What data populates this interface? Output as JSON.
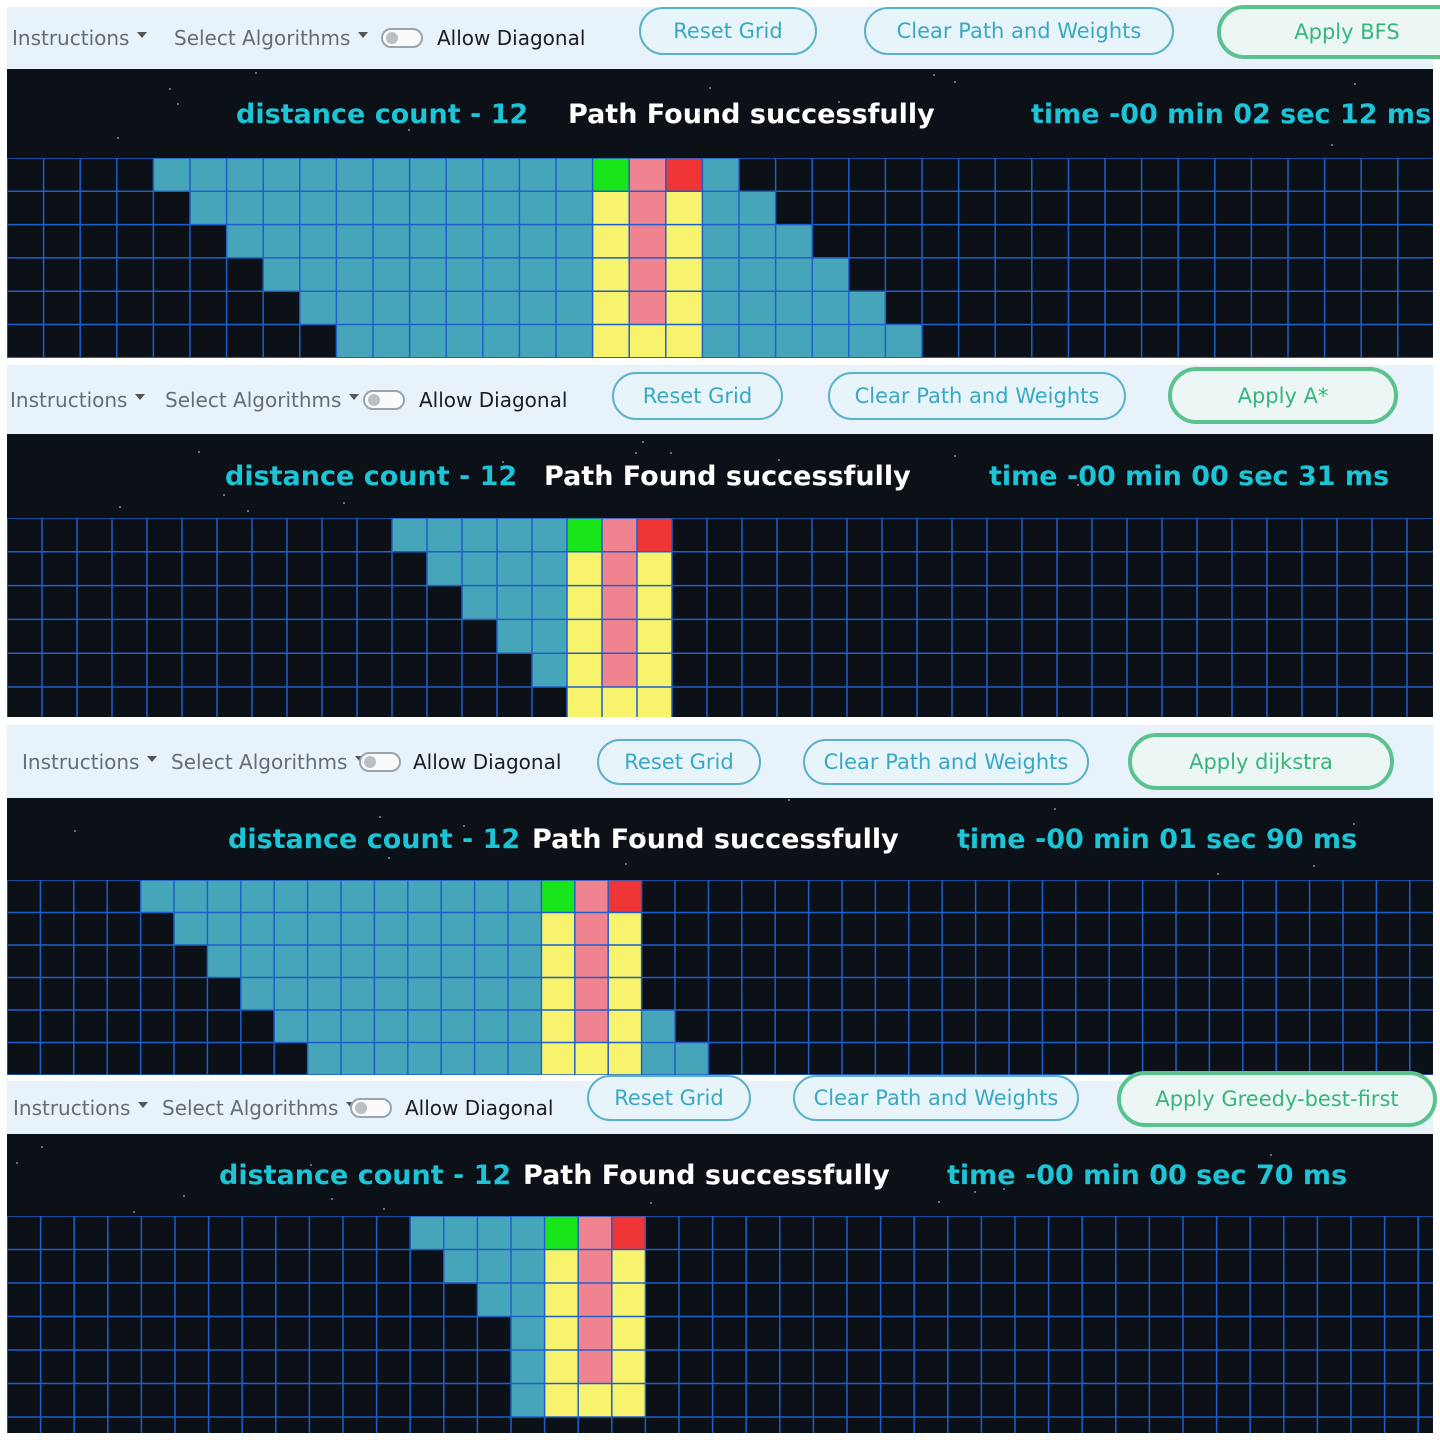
{
  "panels": [
    {
      "toolbar": {
        "instructions": "Instructions",
        "select_algorithms": "Select Algorithms",
        "allow_diagonal": "Allow Diagonal",
        "reset": "Reset Grid",
        "clear": "Clear Path and Weights",
        "apply": "Apply BFS"
      },
      "status": {
        "distance": "distance count - 12",
        "message": "Path Found successfully",
        "time": "time -00 min 02 sec 12 ms"
      },
      "grid": {
        "rows": 6,
        "cols": 39,
        "visited_start": [
          4,
          5,
          6,
          7,
          8,
          9
        ],
        "visited_end": [
          19,
          20,
          21,
          22,
          23,
          24
        ],
        "path_start_col": 16,
        "start_col": 16,
        "end_col": 18
      }
    },
    {
      "toolbar": {
        "instructions": "Instructions",
        "select_algorithms": "Select Algorithms",
        "allow_diagonal": "Allow Diagonal",
        "reset": "Reset Grid",
        "clear": "Clear Path and Weights",
        "apply": "Apply A*"
      },
      "status": {
        "distance": "distance count - 12",
        "message": "Path Found successfully",
        "time": "time -00 min 00 sec 31 ms"
      },
      "grid": {
        "rows": 6,
        "cols": 41,
        "visited_start": [
          11,
          12,
          13,
          14,
          15,
          16
        ],
        "visited_end": [
          15,
          15,
          15,
          15,
          15,
          15
        ],
        "path_start_col": 16,
        "start_col": 16,
        "end_col": 18
      }
    },
    {
      "toolbar": {
        "instructions": "Instructions",
        "select_algorithms": "Select Algorithms",
        "allow_diagonal": "Allow Diagonal",
        "reset": "Reset Grid",
        "clear": "Clear Path and Weights",
        "apply": "Apply dijkstra"
      },
      "status": {
        "distance": "distance count - 12",
        "message": "Path Found successfully",
        "time": "time -00 min 01 sec 90 ms"
      },
      "grid": {
        "rows": 6,
        "cols": 42,
        "visited_start": [
          4,
          5,
          6,
          7,
          8,
          9
        ],
        "visited_end": [
          15,
          16,
          17,
          18,
          19,
          20
        ],
        "path_start_col": 16,
        "start_col": 16,
        "end_col": 18
      }
    },
    {
      "toolbar": {
        "instructions": "Instructions",
        "select_algorithms": "Select Algorithms",
        "allow_diagonal": "Allow Diagonal",
        "reset": "Reset Grid",
        "clear": "Clear Path and Weights",
        "apply": "Apply Greedy-best-first"
      },
      "status": {
        "distance": "distance count - 12",
        "message": "Path Found successfully",
        "time": "time -00 min 00 sec 70 ms"
      },
      "grid": {
        "rows": 6,
        "cols": 42,
        "visited_start": [
          12,
          13,
          14,
          15,
          15,
          15
        ],
        "visited_end": [
          15,
          15,
          15,
          15,
          15,
          15
        ],
        "path_start_col": 16,
        "start_col": 16,
        "end_col": 18
      }
    }
  ],
  "colors": {
    "background": "#0c1118",
    "grid_line": "#1f5fcc",
    "visited": "#46a5b8",
    "path": "#f7f36c",
    "start": "#19e61a",
    "end": "#ef3535",
    "center_path": "#f08390",
    "accent": "#1cc4d6"
  }
}
